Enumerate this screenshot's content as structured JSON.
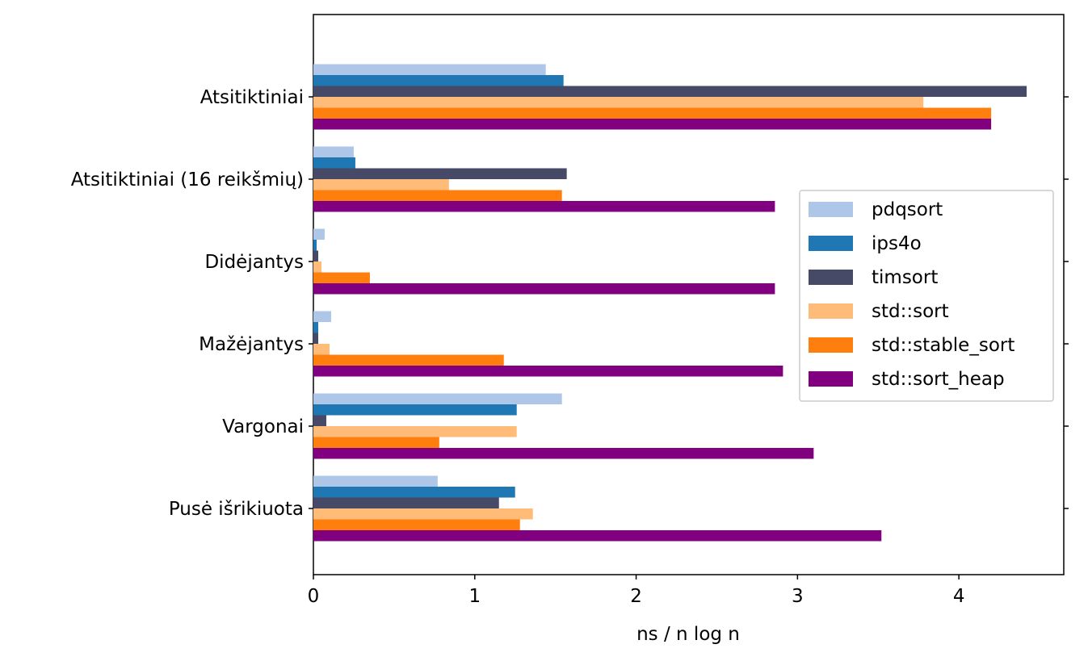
{
  "chart_data": {
    "type": "bar",
    "orientation": "horizontal",
    "categories": [
      "Atsitiktiniai",
      "Atsitiktiniai (16 reikšmių)",
      "Didėjantys",
      "Mažėjantys",
      "Vargonai",
      "Pusė išrikiuota"
    ],
    "xlabel": "ns / n log n",
    "ylabel": "",
    "xlim": [
      0,
      4.65
    ],
    "xticks": [
      0,
      1,
      2,
      3,
      4
    ],
    "grid": false,
    "legend_position": "right",
    "series": [
      {
        "name": "pdqsort",
        "color": "#aec7e8",
        "values": [
          1.44,
          0.25,
          0.07,
          0.11,
          1.54,
          0.77
        ]
      },
      {
        "name": "ips4o",
        "color": "#1f77b4",
        "values": [
          1.55,
          0.26,
          0.02,
          0.03,
          1.26,
          1.25
        ]
      },
      {
        "name": "timsort",
        "color": "#464a66",
        "values": [
          4.42,
          1.57,
          0.03,
          0.03,
          0.08,
          1.15
        ]
      },
      {
        "name": "std::sort",
        "color": "#ffbb78",
        "values": [
          3.78,
          0.84,
          0.05,
          0.1,
          1.26,
          1.36
        ]
      },
      {
        "name": "std::stable_sort",
        "color": "#ff7f0e",
        "values": [
          4.2,
          1.54,
          0.35,
          1.18,
          0.78,
          1.28
        ]
      },
      {
        "name": "std::sort_heap",
        "color": "#800080",
        "values": [
          4.2,
          2.86,
          2.86,
          2.91,
          3.1,
          3.52
        ]
      }
    ]
  }
}
